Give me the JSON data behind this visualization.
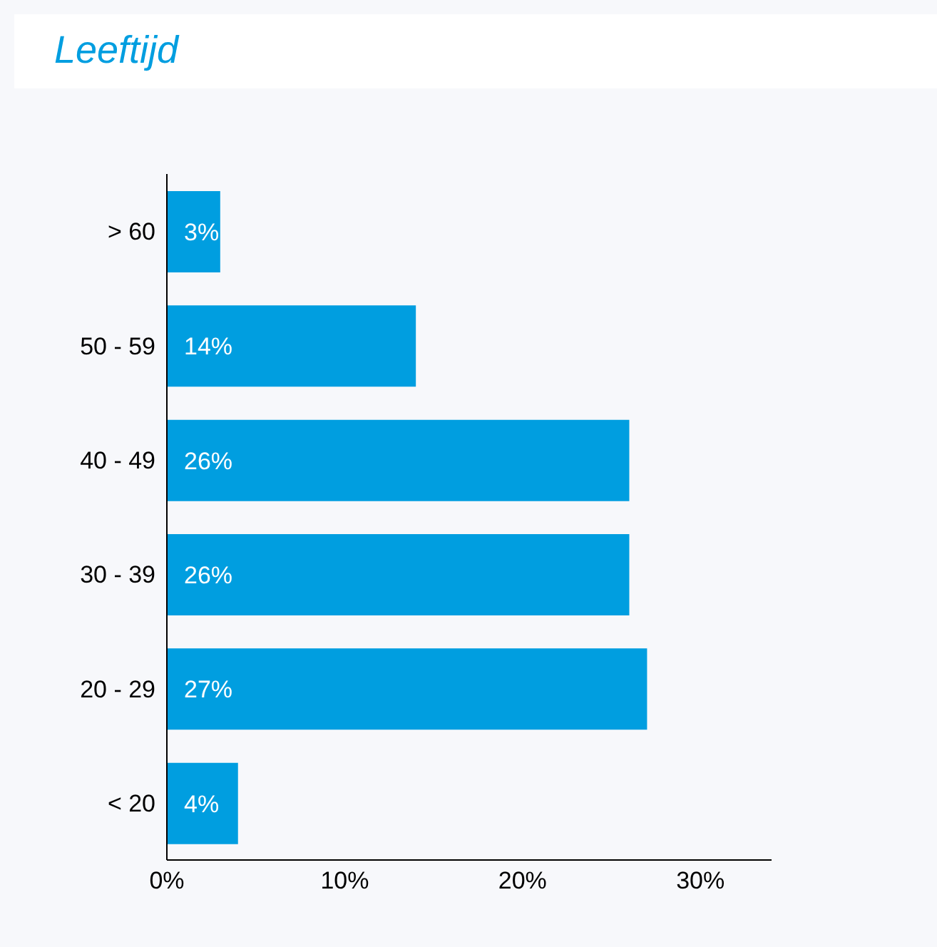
{
  "chart_data": {
    "type": "bar",
    "title": "Leeftijd",
    "orientation": "horizontal",
    "categories": [
      "> 60",
      "50 - 59",
      "40 - 49",
      "30 - 39",
      "20 - 29",
      "< 20"
    ],
    "values": [
      3,
      14,
      26,
      26,
      27,
      4
    ],
    "value_labels": [
      "3%",
      "14%",
      "26%",
      "26%",
      "27%",
      "4%"
    ],
    "color": "#009ee0",
    "xlim": [
      0,
      34
    ],
    "xticks": [
      {
        "value": 0,
        "label": "0%"
      },
      {
        "value": 10,
        "label": "10%"
      },
      {
        "value": 20,
        "label": "20%"
      },
      {
        "value": 30,
        "label": "30%"
      }
    ],
    "grid": false,
    "legend": false
  }
}
